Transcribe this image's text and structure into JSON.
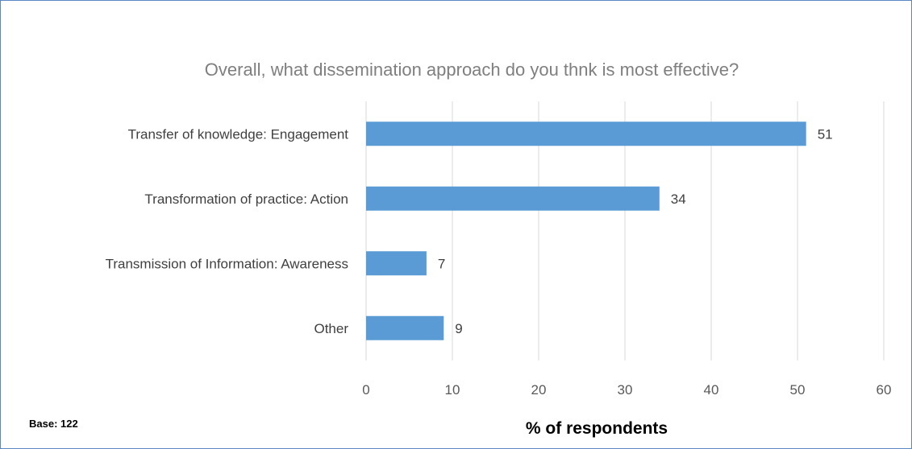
{
  "chart_data": {
    "type": "bar",
    "orientation": "horizontal",
    "title": "Overall, what dissemination approach do you thnk is most effective?",
    "categories": [
      "Transfer  of knowledge: Engagement",
      "Transformation of practice: Action",
      "Transmission of Information: Awareness",
      "Other"
    ],
    "values": [
      51,
      34,
      7,
      9
    ],
    "data_labels": [
      "51",
      "34",
      "7",
      "9"
    ],
    "xlabel": "% of respondents",
    "ylabel": "",
    "xlim": [
      0,
      60
    ],
    "x_ticks": [
      "0",
      "10",
      "20",
      "30",
      "40",
      "50",
      "60"
    ],
    "grid": "vertical gridlines on",
    "legend": "none",
    "bar_color": "#5b9bd5"
  },
  "footnote": "Base: 122"
}
